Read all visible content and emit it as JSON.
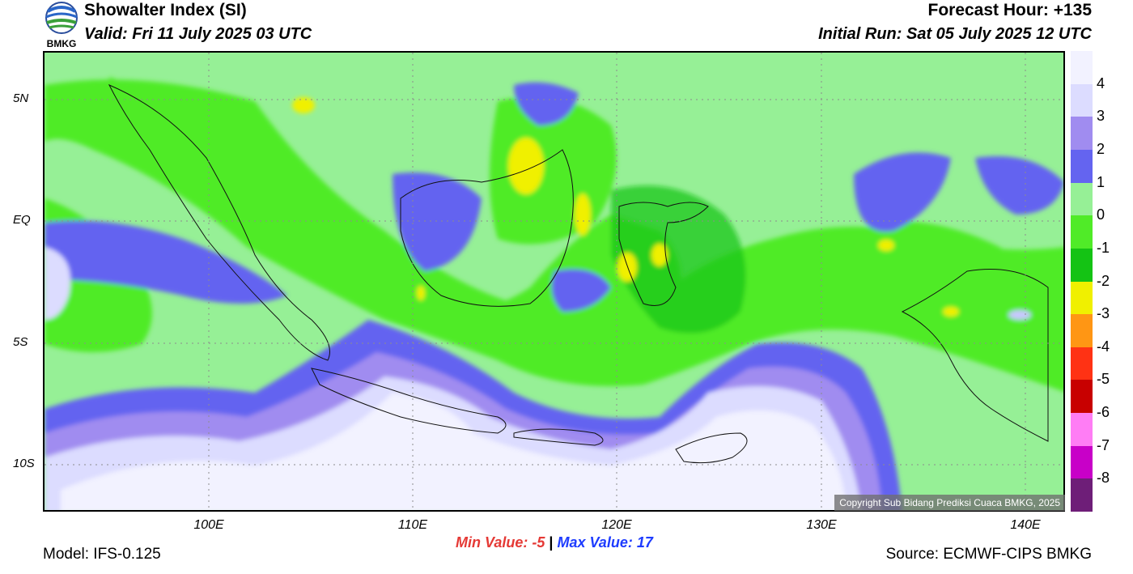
{
  "header": {
    "title": "Showalter Index (SI)",
    "valid": "Valid: Fri 11 July 2025 03 UTC",
    "forecast_hour": "Forecast Hour: +135",
    "initial_run": "Initial Run: Sat 05 July 2025 12 UTC",
    "logo_text": "BMKG"
  },
  "map": {
    "lat_labels": [
      "5N",
      "EQ",
      "5S",
      "10S"
    ],
    "lon_labels": [
      "100E",
      "110E",
      "120E",
      "130E",
      "140E"
    ],
    "copyright": "Copyright Sub Bidang Prediksi Cuaca BMKG, 2025"
  },
  "stats": {
    "min_label": "Min Value:",
    "min_value": "-5",
    "separator": "|",
    "max_label": "Max Value:",
    "max_value": "17"
  },
  "legend": {
    "labels": [
      "4",
      "3",
      "2",
      "1",
      "0",
      "-1",
      "-2",
      "-3",
      "-4",
      "-5",
      "-6",
      "-7",
      "-8"
    ],
    "colors": [
      "#f2f2ff",
      "#dcdcff",
      "#a08cf0",
      "#6464f0",
      "#96f096",
      "#50eb28",
      "#14c314",
      "#f0f000",
      "#ff9614",
      "#ff3214",
      "#c80000",
      "#ff7df5",
      "#c800c8",
      "#6e1e78"
    ]
  },
  "footer": {
    "model": "Model: IFS-0.125",
    "source": "Source: ECMWF-CIPS BMKG"
  }
}
